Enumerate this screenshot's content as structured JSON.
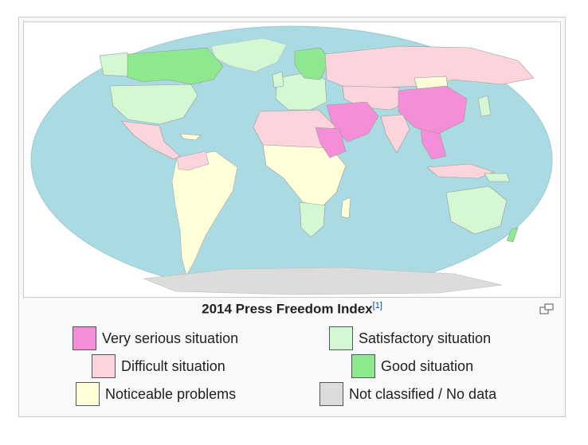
{
  "caption": {
    "title": "2014 Press Freedom Index",
    "ref": "[1]"
  },
  "colors": {
    "ocean": "#aadbe3",
    "very_serious": "#f58ed8",
    "difficult": "#fbd4dc",
    "noticeable": "#ffffd9",
    "satisfactory": "#d4f7d4",
    "good": "#8ee88e",
    "no_data": "#dcdcdc",
    "border": "#c8ccd1"
  },
  "legend": {
    "very_serious": "Very serious situation",
    "difficult": "Difficult situation",
    "noticeable": "Noticeable problems",
    "satisfactory": "Satisfactory situation",
    "good": "Good situation",
    "no_data": "Not classified / No data"
  },
  "icons": {
    "magnify": "magnify-icon"
  }
}
